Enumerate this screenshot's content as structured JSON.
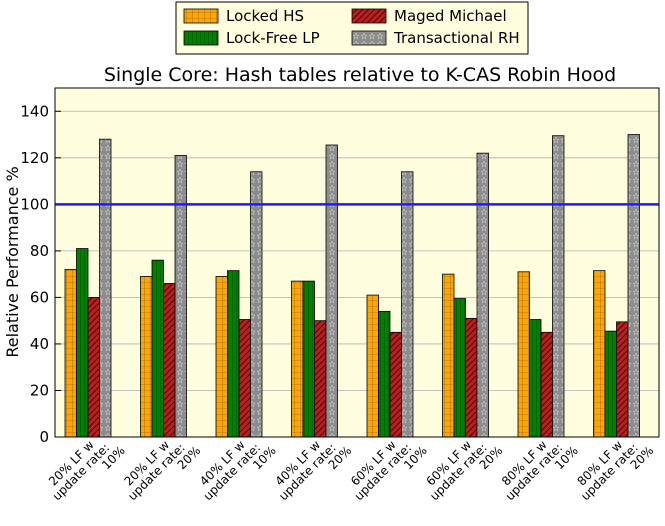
{
  "chart_data": {
    "type": "bar",
    "title": "Single Core: Hash tables relative to K-CAS Robin Hood",
    "xlabel": "",
    "ylabel": "Relative Performance %",
    "ylim": [
      0,
      150
    ],
    "yticks": [
      0,
      20,
      40,
      60,
      80,
      100,
      120,
      140
    ],
    "reference_line": {
      "y": 100,
      "color": "#1a1aff"
    },
    "grid": true,
    "legend_position": "top-center",
    "categories": [
      [
        "20% LF w",
        "update rate:",
        "10%"
      ],
      [
        "20% LF w",
        "update rate:",
        "20%"
      ],
      [
        "40% LF w",
        "update rate:",
        "10%"
      ],
      [
        "40% LF w",
        "update rate:",
        "20%"
      ],
      [
        "60% LF w",
        "update rate:",
        "10%"
      ],
      [
        "60% LF w",
        "update rate:",
        "20%"
      ],
      [
        "80% LF w",
        "update rate:",
        "10%"
      ],
      [
        "80% LF w",
        "update rate:",
        "20%"
      ]
    ],
    "series": [
      {
        "name": "Locked HS",
        "color": "#ffa500",
        "pattern": "grid",
        "values": [
          72,
          69,
          69,
          67,
          61,
          70,
          71,
          71.5
        ]
      },
      {
        "name": "Lock-Free LP",
        "color": "#008000",
        "pattern": "vertical",
        "values": [
          81,
          76,
          71.5,
          67,
          54,
          59.5,
          50.5,
          45.5
        ]
      },
      {
        "name": "Maged Michael",
        "color": "#b22222",
        "pattern": "diagonal",
        "values": [
          60,
          66,
          50.5,
          50,
          45,
          51,
          45,
          49.5
        ]
      },
      {
        "name": "Transactional RH",
        "color": "#808080",
        "pattern": "stars",
        "values": [
          128,
          121,
          114,
          125.5,
          114,
          122,
          129.5,
          130
        ]
      }
    ]
  }
}
